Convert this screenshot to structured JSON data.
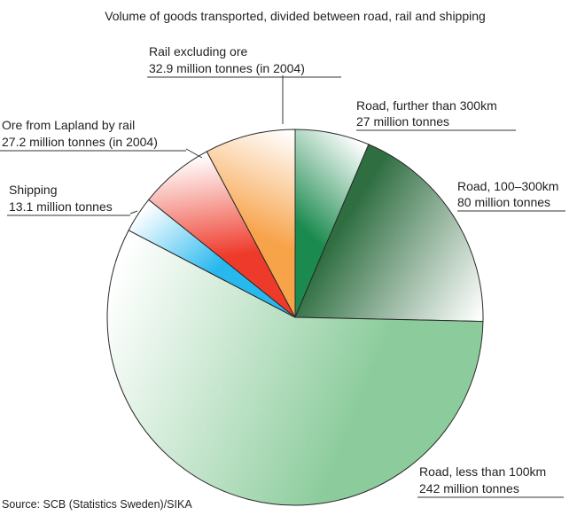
{
  "chart_data": {
    "type": "pie",
    "title": "Volume of goods transported, divided between road, rail and shipping",
    "source": "Source: SCB (Statistics Sweden)/SIKA",
    "unit": "million tonnes",
    "slices": [
      {
        "label": "Road, further than 300km",
        "value_text": "27 million tonnes",
        "value": 27,
        "color": "#1a8a4e"
      },
      {
        "label": "Road, 100–300km",
        "value_text": "80 million tonnes",
        "value": 80,
        "color": "#2f6e41"
      },
      {
        "label": "Road, less than 100km",
        "value_text": "242 million tonnes",
        "value": 242,
        "color": "#8ccc9c"
      },
      {
        "label": "Shipping",
        "value_text": "13.1 million tonnes",
        "value": 13.1,
        "color": "#27b8ee"
      },
      {
        "label": "Ore from Lapland by rail",
        "value_text": "27.2 million tonnes (in 2004)",
        "value": 27.2,
        "color": "#ee3a2a"
      },
      {
        "label": "Rail excluding ore",
        "value_text": "32.9 million tonnes (in 2004)",
        "value": 32.9,
        "color": "#f7a34a"
      }
    ]
  }
}
